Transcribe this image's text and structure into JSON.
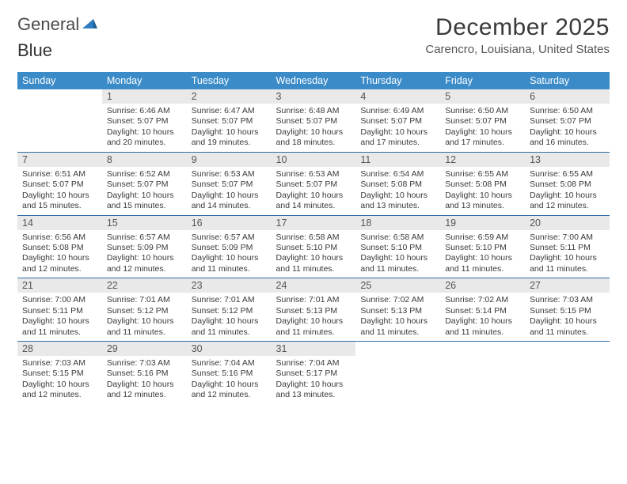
{
  "brand": {
    "part1": "General",
    "part2": "Blue"
  },
  "title": "December 2025",
  "location": "Carencro, Louisiana, United States",
  "dayHeaders": [
    "Sunday",
    "Monday",
    "Tuesday",
    "Wednesday",
    "Thursday",
    "Friday",
    "Saturday"
  ],
  "colors": {
    "headerBg": "#3b8bc9",
    "headerText": "#ffffff",
    "dayNumBg": "#e9e9e9",
    "ruleColor": "#2f6ea8",
    "logoAccent": "#2f7bbf",
    "bodyText": "#3a3a3a",
    "mutedText": "#555555",
    "pageBg": "#ffffff"
  },
  "typography": {
    "titleSize": 30,
    "locationSize": 15,
    "headerSize": 12.5,
    "dayNumSize": 12.5,
    "cellSize": 10.5,
    "logoSize": 22
  },
  "layout": {
    "cols": 7,
    "colWidthPx": 107,
    "pageWidth": 792,
    "pageHeight": 612
  },
  "weeks": [
    [
      null,
      {
        "n": "1",
        "sunrise": "Sunrise: 6:46 AM",
        "sunset": "Sunset: 5:07 PM",
        "daylight": "Daylight: 10 hours and 20 minutes."
      },
      {
        "n": "2",
        "sunrise": "Sunrise: 6:47 AM",
        "sunset": "Sunset: 5:07 PM",
        "daylight": "Daylight: 10 hours and 19 minutes."
      },
      {
        "n": "3",
        "sunrise": "Sunrise: 6:48 AM",
        "sunset": "Sunset: 5:07 PM",
        "daylight": "Daylight: 10 hours and 18 minutes."
      },
      {
        "n": "4",
        "sunrise": "Sunrise: 6:49 AM",
        "sunset": "Sunset: 5:07 PM",
        "daylight": "Daylight: 10 hours and 17 minutes."
      },
      {
        "n": "5",
        "sunrise": "Sunrise: 6:50 AM",
        "sunset": "Sunset: 5:07 PM",
        "daylight": "Daylight: 10 hours and 17 minutes."
      },
      {
        "n": "6",
        "sunrise": "Sunrise: 6:50 AM",
        "sunset": "Sunset: 5:07 PM",
        "daylight": "Daylight: 10 hours and 16 minutes."
      }
    ],
    [
      {
        "n": "7",
        "sunrise": "Sunrise: 6:51 AM",
        "sunset": "Sunset: 5:07 PM",
        "daylight": "Daylight: 10 hours and 15 minutes."
      },
      {
        "n": "8",
        "sunrise": "Sunrise: 6:52 AM",
        "sunset": "Sunset: 5:07 PM",
        "daylight": "Daylight: 10 hours and 15 minutes."
      },
      {
        "n": "9",
        "sunrise": "Sunrise: 6:53 AM",
        "sunset": "Sunset: 5:07 PM",
        "daylight": "Daylight: 10 hours and 14 minutes."
      },
      {
        "n": "10",
        "sunrise": "Sunrise: 6:53 AM",
        "sunset": "Sunset: 5:07 PM",
        "daylight": "Daylight: 10 hours and 14 minutes."
      },
      {
        "n": "11",
        "sunrise": "Sunrise: 6:54 AM",
        "sunset": "Sunset: 5:08 PM",
        "daylight": "Daylight: 10 hours and 13 minutes."
      },
      {
        "n": "12",
        "sunrise": "Sunrise: 6:55 AM",
        "sunset": "Sunset: 5:08 PM",
        "daylight": "Daylight: 10 hours and 13 minutes."
      },
      {
        "n": "13",
        "sunrise": "Sunrise: 6:55 AM",
        "sunset": "Sunset: 5:08 PM",
        "daylight": "Daylight: 10 hours and 12 minutes."
      }
    ],
    [
      {
        "n": "14",
        "sunrise": "Sunrise: 6:56 AM",
        "sunset": "Sunset: 5:08 PM",
        "daylight": "Daylight: 10 hours and 12 minutes."
      },
      {
        "n": "15",
        "sunrise": "Sunrise: 6:57 AM",
        "sunset": "Sunset: 5:09 PM",
        "daylight": "Daylight: 10 hours and 12 minutes."
      },
      {
        "n": "16",
        "sunrise": "Sunrise: 6:57 AM",
        "sunset": "Sunset: 5:09 PM",
        "daylight": "Daylight: 10 hours and 11 minutes."
      },
      {
        "n": "17",
        "sunrise": "Sunrise: 6:58 AM",
        "sunset": "Sunset: 5:10 PM",
        "daylight": "Daylight: 10 hours and 11 minutes."
      },
      {
        "n": "18",
        "sunrise": "Sunrise: 6:58 AM",
        "sunset": "Sunset: 5:10 PM",
        "daylight": "Daylight: 10 hours and 11 minutes."
      },
      {
        "n": "19",
        "sunrise": "Sunrise: 6:59 AM",
        "sunset": "Sunset: 5:10 PM",
        "daylight": "Daylight: 10 hours and 11 minutes."
      },
      {
        "n": "20",
        "sunrise": "Sunrise: 7:00 AM",
        "sunset": "Sunset: 5:11 PM",
        "daylight": "Daylight: 10 hours and 11 minutes."
      }
    ],
    [
      {
        "n": "21",
        "sunrise": "Sunrise: 7:00 AM",
        "sunset": "Sunset: 5:11 PM",
        "daylight": "Daylight: 10 hours and 11 minutes."
      },
      {
        "n": "22",
        "sunrise": "Sunrise: 7:01 AM",
        "sunset": "Sunset: 5:12 PM",
        "daylight": "Daylight: 10 hours and 11 minutes."
      },
      {
        "n": "23",
        "sunrise": "Sunrise: 7:01 AM",
        "sunset": "Sunset: 5:12 PM",
        "daylight": "Daylight: 10 hours and 11 minutes."
      },
      {
        "n": "24",
        "sunrise": "Sunrise: 7:01 AM",
        "sunset": "Sunset: 5:13 PM",
        "daylight": "Daylight: 10 hours and 11 minutes."
      },
      {
        "n": "25",
        "sunrise": "Sunrise: 7:02 AM",
        "sunset": "Sunset: 5:13 PM",
        "daylight": "Daylight: 10 hours and 11 minutes."
      },
      {
        "n": "26",
        "sunrise": "Sunrise: 7:02 AM",
        "sunset": "Sunset: 5:14 PM",
        "daylight": "Daylight: 10 hours and 11 minutes."
      },
      {
        "n": "27",
        "sunrise": "Sunrise: 7:03 AM",
        "sunset": "Sunset: 5:15 PM",
        "daylight": "Daylight: 10 hours and 11 minutes."
      }
    ],
    [
      {
        "n": "28",
        "sunrise": "Sunrise: 7:03 AM",
        "sunset": "Sunset: 5:15 PM",
        "daylight": "Daylight: 10 hours and 12 minutes."
      },
      {
        "n": "29",
        "sunrise": "Sunrise: 7:03 AM",
        "sunset": "Sunset: 5:16 PM",
        "daylight": "Daylight: 10 hours and 12 minutes."
      },
      {
        "n": "30",
        "sunrise": "Sunrise: 7:04 AM",
        "sunset": "Sunset: 5:16 PM",
        "daylight": "Daylight: 10 hours and 12 minutes."
      },
      {
        "n": "31",
        "sunrise": "Sunrise: 7:04 AM",
        "sunset": "Sunset: 5:17 PM",
        "daylight": "Daylight: 10 hours and 13 minutes."
      },
      null,
      null,
      null
    ]
  ]
}
